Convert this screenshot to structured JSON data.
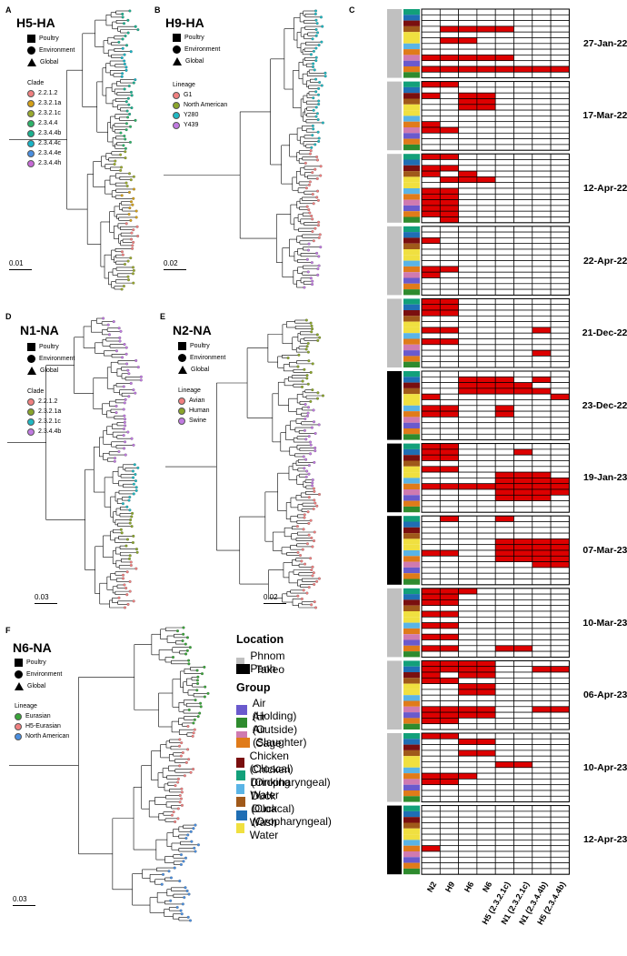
{
  "panels": {
    "A": {
      "letter": "A",
      "title": "H5-HA",
      "scale": "0.01",
      "legend_title": "Clade",
      "shapes": [
        "Poultry",
        "Environment",
        "Global"
      ],
      "items": [
        {
          "label": "2.2.1.2",
          "color": "#f08080"
        },
        {
          "label": "2.3.2.1a",
          "color": "#d4a017"
        },
        {
          "label": "2.3.2.1c",
          "color": "#9aaa2e"
        },
        {
          "label": "2.3.4.4",
          "color": "#2db36a"
        },
        {
          "label": "2.3.4.4b",
          "color": "#1bb18f"
        },
        {
          "label": "2.3.4.4c",
          "color": "#18b4c6"
        },
        {
          "label": "2.3.4.4e",
          "color": "#4a8fe0"
        },
        {
          "label": "2.3.4.4h",
          "color": "#c66ad6"
        }
      ]
    },
    "B": {
      "letter": "B",
      "title": "H9-HA",
      "scale": "0.02",
      "legend_title": "Lineage",
      "shapes": [
        "Poultry",
        "Environment",
        "Global"
      ],
      "items": [
        {
          "label": "G1",
          "color": "#f08080"
        },
        {
          "label": "North American",
          "color": "#8aa52a"
        },
        {
          "label": "Y280",
          "color": "#20b8c2"
        },
        {
          "label": "Y439",
          "color": "#c07ae0"
        }
      ]
    },
    "D": {
      "letter": "D",
      "title": "N1-NA",
      "scale": "0.03",
      "legend_title": "Clade",
      "shapes": [
        "Poultry",
        "Environment",
        "Global"
      ],
      "items": [
        {
          "label": "2.2.1.2",
          "color": "#f08080"
        },
        {
          "label": "2.3.2.1a",
          "color": "#8aa52a"
        },
        {
          "label": "2.3.2.1c",
          "color": "#20b8c2"
        },
        {
          "label": "2.3.4.4b",
          "color": "#c07ae0"
        }
      ]
    },
    "E": {
      "letter": "E",
      "title": "N2-NA",
      "scale": "0.02",
      "legend_title": "Lineage",
      "shapes": [
        "Poultry",
        "Environment",
        "Global"
      ],
      "items": [
        {
          "label": "Avian",
          "color": "#f08080"
        },
        {
          "label": "Human",
          "color": "#8aa52a"
        },
        {
          "label": "Swine",
          "color": "#c07ae0"
        }
      ]
    },
    "F": {
      "letter": "F",
      "title": "N6-NA",
      "scale": "0.03",
      "legend_title": "Lineage",
      "shapes": [
        "Poultry",
        "Environment",
        "Global"
      ],
      "items": [
        {
          "label": "Eurasian",
          "color": "#3aa53a"
        },
        {
          "label": "H5-Eurasian",
          "color": "#f08080"
        },
        {
          "label": "North American",
          "color": "#4a8fe0"
        }
      ]
    }
  },
  "panel_C": {
    "letter": "C",
    "columns": [
      "N2",
      "H9",
      "H6",
      "N6",
      "H5 (2.3.2.1c)",
      "N1 (2.3.2.1c)",
      "N1 (2.3.4.4b)",
      "H5 (2.3.4.4b)"
    ],
    "groups_palette": {
      "Air (Holding)": "#6a5acd",
      "Air (Outside)": "#2e8b2e",
      "Air (Slaughter)": "#d07ab0",
      "Cage": "#e07b1a",
      "Chicken (Cloacal)": "#7a0f0f",
      "Chicken (Oropharyngeal)": "#12a07a",
      "Drinking Water": "#5ab4e6",
      "Duck (Cloacal)": "#a0591a",
      "Duck (Oropharyngeal)": "#1f6eb4",
      "Wash Water": "#f0e040"
    },
    "location_colors": {
      "Phnom Penh": "#c0c0c0",
      "Takeo": "#000000"
    },
    "hit_color": "#dd0000",
    "blocks": [
      {
        "date": "27-Jan-22",
        "location": "Phnom Penh",
        "rows": [
          [],
          [],
          [],
          [
            1,
            2,
            3,
            4
          ],
          [],
          [
            1,
            2
          ],
          [],
          [],
          [
            0,
            1,
            2,
            3,
            4
          ],
          [],
          [
            0,
            1,
            2,
            3,
            4,
            5,
            6,
            7
          ],
          []
        ]
      },
      {
        "date": "17-Mar-22",
        "location": "Phnom Penh",
        "rows": [
          [
            0,
            1
          ],
          [],
          [
            0,
            2,
            3
          ],
          [
            2,
            3
          ],
          [
            2,
            3
          ],
          [],
          [],
          [
            0
          ],
          [
            0,
            1
          ],
          [],
          [],
          []
        ]
      },
      {
        "date": "12-Apr-22",
        "location": "Phnom Penh",
        "rows": [
          [
            0,
            1
          ],
          [],
          [
            0,
            1
          ],
          [
            0,
            2
          ],
          [
            1,
            2,
            3
          ],
          [],
          [
            0,
            1
          ],
          [
            0,
            1
          ],
          [
            0,
            1
          ],
          [
            0,
            1
          ],
          [
            0,
            1
          ],
          [
            1
          ]
        ]
      },
      {
        "date": "22-Apr-22",
        "location": "Phnom Penh",
        "rows": [
          [],
          [],
          [
            0
          ],
          [],
          [],
          [],
          [],
          [
            0,
            1
          ],
          [
            0
          ],
          [],
          [],
          []
        ]
      },
      {
        "date": "21-Dec-22",
        "location": "Phnom Penh",
        "rows": [
          [
            0,
            1
          ],
          [
            0,
            1
          ],
          [
            0,
            1
          ],
          [],
          [],
          [
            0,
            1,
            6
          ],
          [],
          [
            0,
            1
          ],
          [],
          [
            6
          ],
          [],
          []
        ]
      },
      {
        "date": "23-Dec-22",
        "location": "Takeo",
        "rows": [
          [],
          [
            2,
            3,
            4,
            6
          ],
          [
            2,
            3,
            4,
            5
          ],
          [
            2,
            3,
            4,
            5,
            6
          ],
          [
            0,
            7
          ],
          [],
          [
            0,
            1,
            4
          ],
          [
            0,
            1,
            4
          ],
          [],
          [],
          [],
          []
        ]
      },
      {
        "date": "19-Jan-23",
        "location": "Takeo",
        "rows": [
          [
            0,
            1
          ],
          [
            0,
            1,
            5
          ],
          [
            0,
            1
          ],
          [],
          [
            0,
            1
          ],
          [
            4,
            5,
            6
          ],
          [
            4,
            5,
            6,
            7
          ],
          [
            0,
            1,
            2,
            3,
            4,
            5,
            6,
            7
          ],
          [
            4,
            5,
            6,
            7
          ],
          [
            4,
            5,
            6
          ],
          [],
          []
        ]
      },
      {
        "date": "07-Mar-23",
        "location": "Takeo",
        "rows": [
          [
            1,
            4
          ],
          [],
          [],
          [],
          [
            4,
            5,
            6,
            7
          ],
          [
            4,
            5,
            6,
            7
          ],
          [
            0,
            1,
            4,
            5,
            6,
            7
          ],
          [
            4,
            5,
            6,
            7
          ],
          [
            6,
            7
          ],
          [],
          [],
          []
        ]
      },
      {
        "date": "10-Mar-23",
        "location": "Phnom Penh",
        "rows": [
          [
            0,
            1,
            2
          ],
          [
            0,
            1
          ],
          [
            0,
            1
          ],
          [],
          [
            0,
            1
          ],
          [],
          [
            0,
            1
          ],
          [],
          [
            0,
            1
          ],
          [],
          [
            0,
            1,
            4,
            5
          ],
          []
        ]
      },
      {
        "date": "06-Apr-23",
        "location": "Phnom Penh",
        "rows": [
          [
            0,
            1,
            2,
            3
          ],
          [
            0,
            1,
            2,
            3,
            6,
            7
          ],
          [
            0,
            2,
            3
          ],
          [
            0,
            1
          ],
          [
            2,
            3
          ],
          [
            2,
            3
          ],
          [],
          [],
          [
            0,
            1,
            2,
            3,
            6,
            7
          ],
          [
            0,
            1,
            2,
            3
          ],
          [
            0,
            1
          ],
          []
        ]
      },
      {
        "date": "10-Apr-23",
        "location": "Phnom Penh",
        "rows": [
          [
            0,
            1
          ],
          [
            2,
            3
          ],
          [],
          [
            2,
            3
          ],
          [],
          [
            4,
            5
          ],
          [],
          [
            0,
            1,
            2
          ],
          [
            0,
            1
          ],
          [],
          [],
          []
        ]
      },
      {
        "date": "12-Apr-23",
        "location": "Takeo",
        "rows": [
          [],
          [],
          [],
          [],
          [],
          [],
          [],
          [
            0
          ],
          [],
          [],
          [],
          []
        ]
      }
    ]
  },
  "legend": {
    "location_title": "Location",
    "locations": [
      {
        "label": "Phnom Penh",
        "color": "#c0c0c0"
      },
      {
        "label": "Takeo",
        "color": "#000000"
      }
    ],
    "group_title": "Group",
    "groups": [
      {
        "label": "Air (Holding)",
        "color": "#6a5acd"
      },
      {
        "label": "Air (Outside)",
        "color": "#2e8b2e"
      },
      {
        "label": "Air (Slaughter)",
        "color": "#d07ab0"
      },
      {
        "label": "Cage",
        "color": "#e07b1a"
      },
      {
        "label": "Chicken (Cloacal)",
        "color": "#7a0f0f"
      },
      {
        "label": "Chicken (Oropharyngeal)",
        "color": "#12a07a"
      },
      {
        "label": "Drinking Water",
        "color": "#5ab4e6"
      },
      {
        "label": "Duck (Cloacal)",
        "color": "#a0591a"
      },
      {
        "label": "Duck (Oropharyngeal)",
        "color": "#1f6eb4"
      },
      {
        "label": "Wash Water",
        "color": "#f0e040"
      }
    ]
  }
}
